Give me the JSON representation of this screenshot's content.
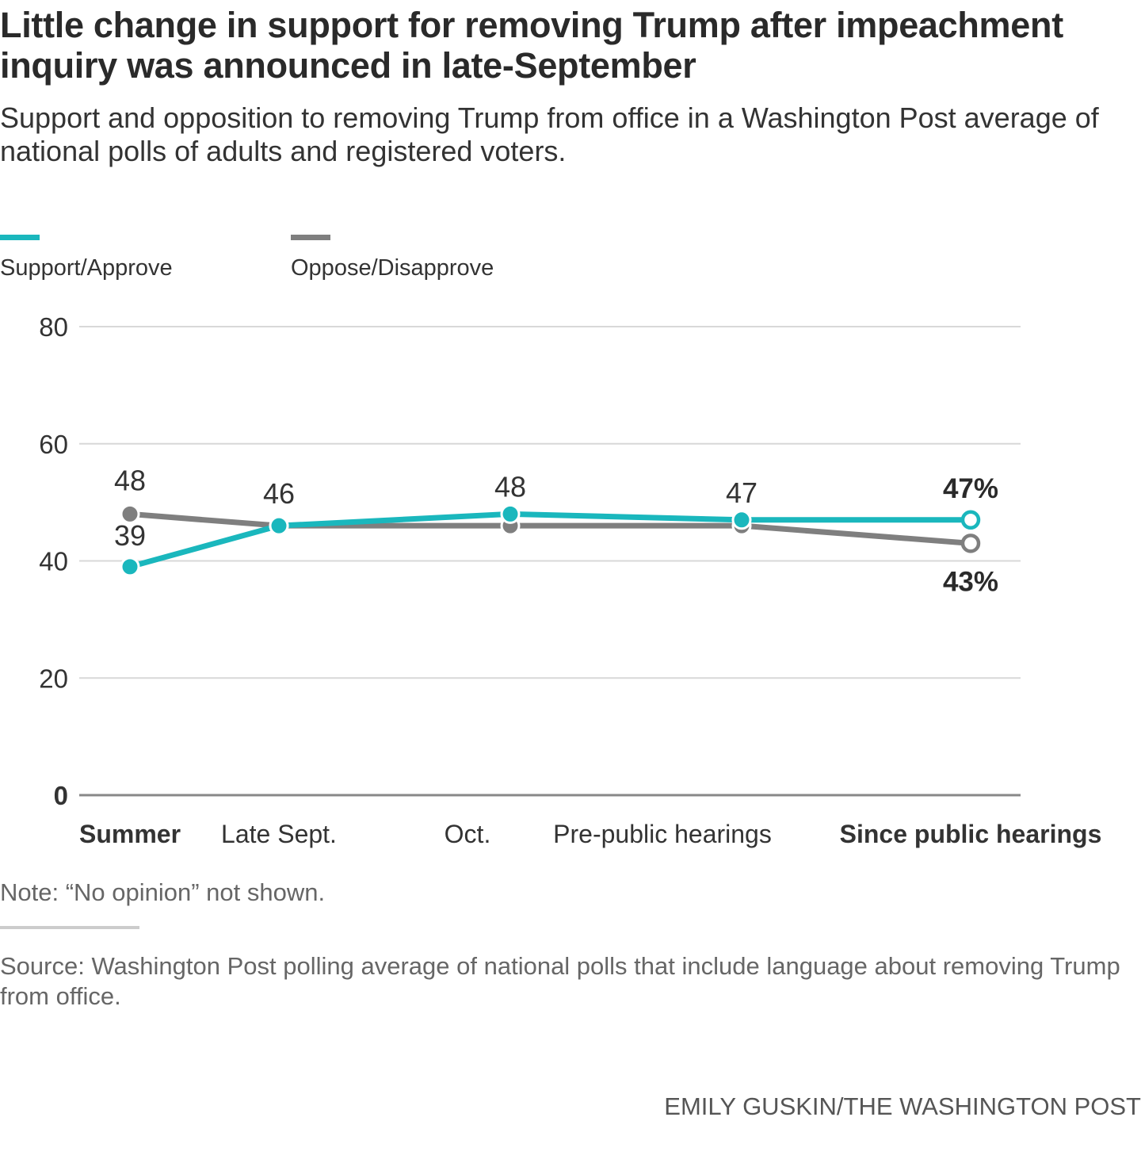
{
  "header": {
    "title": "Little change in support for removing Trump after impeachment inquiry was announced in late-September",
    "subtitle": "Support and opposition to removing Trump from office in a Washington Post average of national polls of adults and registered voters."
  },
  "legend": [
    {
      "label": "Support/Approve",
      "color": "#1ab7bd"
    },
    {
      "label": "Oppose/Disapprove",
      "color": "#7f7f7f"
    }
  ],
  "chart_data": {
    "type": "line",
    "title": "Little change in support for removing Trump after impeachment inquiry was announced in late-September",
    "subtitle": "Support and opposition to removing Trump from office in a Washington Post average of national polls of adults and registered voters.",
    "xlabel": "",
    "ylabel": "",
    "categories": [
      "Summer",
      "Late Sept.",
      "Oct.",
      "Pre-public hearings",
      "Since public hearings"
    ],
    "bold_categories": [
      "Summer",
      "Since public hearings"
    ],
    "ylim": [
      0,
      80
    ],
    "yticks": [
      0,
      20,
      40,
      60,
      80
    ],
    "grid": true,
    "legend_position": "top-left",
    "series": [
      {
        "name": "Support/Approve",
        "color": "#1ab7bd",
        "values": [
          39,
          46,
          48,
          47,
          47
        ],
        "labels": [
          "39",
          "",
          "48",
          "47",
          "47%"
        ],
        "label_position": [
          "above",
          "none",
          "above",
          "above",
          "above"
        ]
      },
      {
        "name": "Oppose/Disapprove",
        "color": "#7f7f7f",
        "values": [
          48,
          46,
          46,
          46,
          43
        ],
        "labels": [
          "48",
          "46",
          "",
          "",
          "43%"
        ],
        "label_position": [
          "above",
          "above",
          "none",
          "none",
          "below"
        ]
      }
    ]
  },
  "footer": {
    "note": "Note: “No opinion” not shown.",
    "source": "Source: Washington Post polling average of national polls that include language about removing Trump from office.",
    "credit": "EMILY GUSKIN/THE WASHINGTON POST"
  }
}
